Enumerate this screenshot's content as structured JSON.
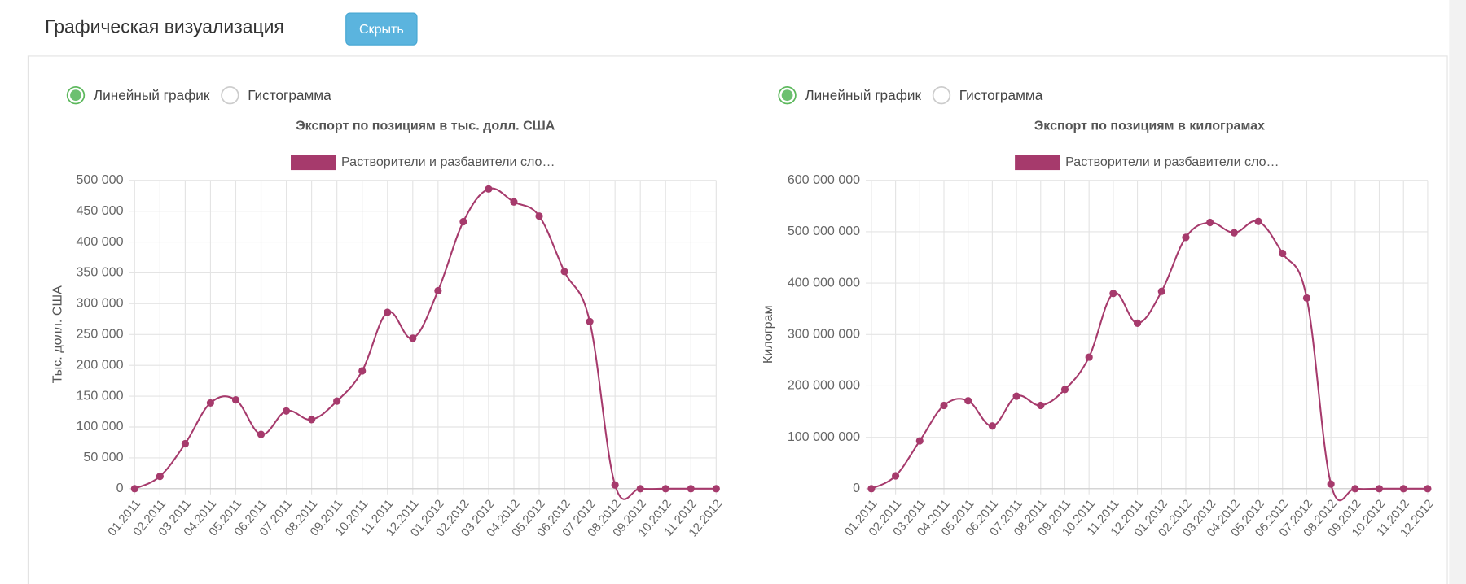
{
  "header": {
    "title": "Графическая визуализация",
    "button": "Скрыть"
  },
  "view_options": [
    [
      "Линейный график",
      "Гистограмма"
    ],
    [
      "Линейный график",
      "Гистограмма"
    ]
  ],
  "chart_data": [
    {
      "type": "line",
      "title": "Экспорт по позициям в тыс. долл. США",
      "ylabel": "Тыс. долл. США",
      "categories": [
        "01.2011",
        "02.2011",
        "03.2011",
        "04.2011",
        "05.2011",
        "06.2011",
        "07.2011",
        "08.2011",
        "09.2011",
        "10.2011",
        "11.2011",
        "12.2011",
        "01.2012",
        "02.2012",
        "03.2012",
        "04.2012",
        "05.2012",
        "06.2012",
        "07.2012",
        "08.2012",
        "09.2012",
        "10.2012",
        "11.2012",
        "12.2012"
      ],
      "series": [
        {
          "name": "Растворители и разбавители сло…",
          "color": "#a63a6c",
          "values": [
            0,
            20000,
            73000,
            139000,
            144000,
            88000,
            126000,
            112000,
            142000,
            191000,
            286000,
            244000,
            321000,
            433000,
            486000,
            465000,
            442000,
            352000,
            271000,
            6000,
            0,
            0,
            0,
            0
          ]
        }
      ],
      "ylim": [
        0,
        500000
      ],
      "yticks": [
        0,
        {
          "value": 50000,
          "label": "50 000"
        },
        {
          "value": 100000,
          "label": "100 000"
        },
        {
          "value": 150000,
          "label": "150 000"
        },
        {
          "value": 200000,
          "label": "200 000"
        },
        {
          "value": 250000,
          "label": "250 000"
        },
        {
          "value": 300000,
          "label": "300 000"
        },
        {
          "value": 350000,
          "label": "350 000"
        },
        {
          "value": 400000,
          "label": "400 000"
        },
        {
          "value": 450000,
          "label": "450 000"
        },
        {
          "value": 500000,
          "label": "500 000"
        }
      ],
      "grid": true,
      "legend": "top"
    },
    {
      "type": "line",
      "title": "Экспорт по позициям в килограмах",
      "ylabel": "Килограм",
      "categories": [
        "01.2011",
        "02.2011",
        "03.2011",
        "04.2011",
        "05.2011",
        "06.2011",
        "07.2011",
        "08.2011",
        "09.2011",
        "10.2011",
        "11.2011",
        "12.2011",
        "01.2012",
        "02.2012",
        "03.2012",
        "04.2012",
        "05.2012",
        "06.2012",
        "07.2012",
        "08.2012",
        "09.2012",
        "10.2012",
        "11.2012",
        "12.2012"
      ],
      "series": [
        {
          "name": "Растворители и разбавители сло…",
          "color": "#a63a6c",
          "values": [
            0,
            25000000,
            93000000,
            162000000,
            171000000,
            122000000,
            180000000,
            162000000,
            193000000,
            256000000,
            380000000,
            322000000,
            384000000,
            489000000,
            518000000,
            498000000,
            520000000,
            458000000,
            371000000,
            9000000,
            0,
            0,
            0,
            0
          ]
        }
      ],
      "ylim": [
        0,
        600000000
      ],
      "yticks": [
        0,
        {
          "value": 100000000,
          "label": "100 000 000"
        },
        {
          "value": 200000000,
          "label": "200 000 000"
        },
        {
          "value": 300000000,
          "label": "300 000 000"
        },
        {
          "value": 400000000,
          "label": "400 000 000"
        },
        {
          "value": 500000000,
          "label": "500 000 000"
        },
        {
          "value": 600000000,
          "label": "600 000 000"
        }
      ],
      "grid": true,
      "legend": "top"
    }
  ]
}
